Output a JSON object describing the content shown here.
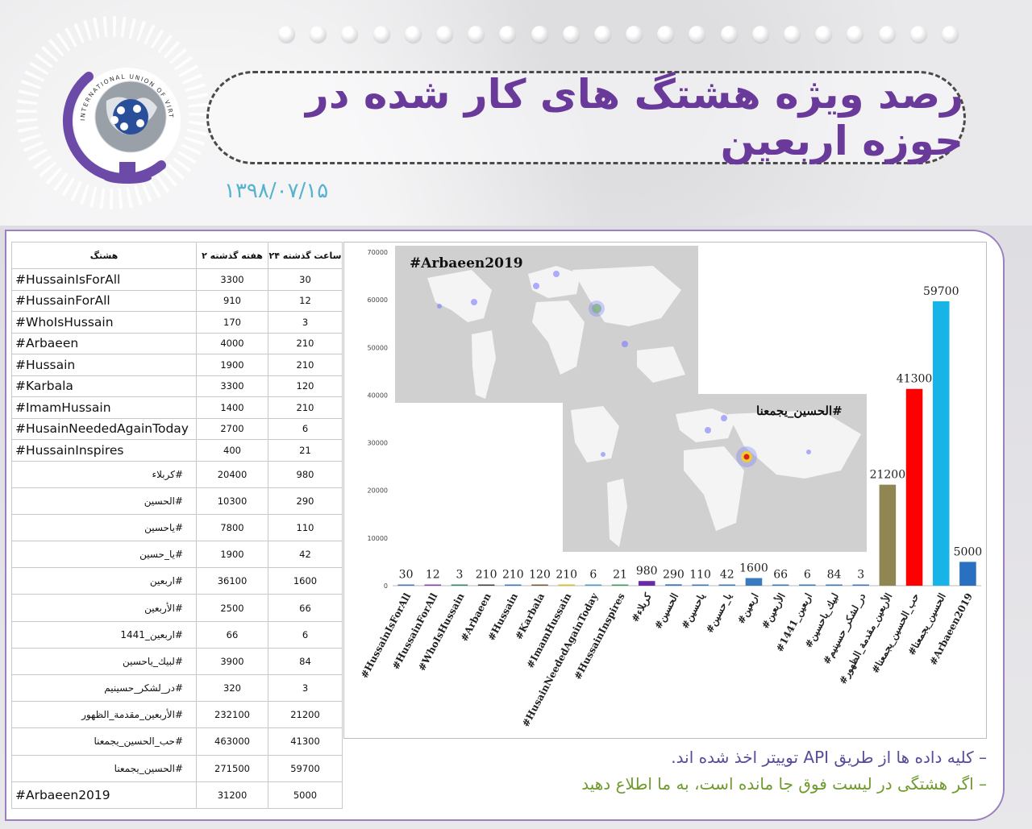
{
  "header": {
    "title": "رصد ویژه هشتگ های کار شده در حوزه اربعین",
    "date": "۱۳۹۸/۰۷/۱۵",
    "logo_text": "INTERNATIONAL UNION OF VIRTUAL MEDIA"
  },
  "table": {
    "headers": {
      "tag": "هشتگ",
      "two_weeks": "۲ هفته گذشته",
      "last_24h": "۲۴ ساعت گذشته"
    },
    "rows": [
      {
        "tag": "#HussainIsForAll",
        "two_weeks": "3300",
        "last_24h": "30"
      },
      {
        "tag": "#HussainForAll",
        "two_weeks": "910",
        "last_24h": "12"
      },
      {
        "tag": "#WhoIsHussain",
        "two_weeks": "170",
        "last_24h": "3"
      },
      {
        "tag": "#Arbaeen",
        "two_weeks": "4000",
        "last_24h": "210"
      },
      {
        "tag": "#Hussain",
        "two_weeks": "1900",
        "last_24h": "210"
      },
      {
        "tag": "#Karbala",
        "two_weeks": "3300",
        "last_24h": "120"
      },
      {
        "tag": "#ImamHussain",
        "two_weeks": "1400",
        "last_24h": "210"
      },
      {
        "tag": "#HusainNeededAgainToday",
        "two_weeks": "2700",
        "last_24h": "6"
      },
      {
        "tag": "#HussainInspires",
        "two_weeks": "400",
        "last_24h": "21"
      },
      {
        "tag": "#کربلاء",
        "two_weeks": "20400",
        "last_24h": "980"
      },
      {
        "tag": "#الحسین",
        "two_weeks": "10300",
        "last_24h": "290"
      },
      {
        "tag": "#یاحسین",
        "two_weeks": "7800",
        "last_24h": "110"
      },
      {
        "tag": "#یا_حسین",
        "two_weeks": "1900",
        "last_24h": "42"
      },
      {
        "tag": "#اربعین",
        "two_weeks": "36100",
        "last_24h": "1600"
      },
      {
        "tag": "#الأربعین",
        "two_weeks": "2500",
        "last_24h": "66"
      },
      {
        "tag": "#اربعین_1441",
        "two_weeks": "66",
        "last_24h": "6"
      },
      {
        "tag": "#لبیك_یاحسین",
        "two_weeks": "3900",
        "last_24h": "84"
      },
      {
        "tag": "#در_لشکر_حسینیم",
        "two_weeks": "320",
        "last_24h": "3"
      },
      {
        "tag": "#الأربعین_مقدمة_الظهور",
        "two_weeks": "232100",
        "last_24h": "21200"
      },
      {
        "tag": "#حب_الحسین_یجمعنا",
        "two_weeks": "463000",
        "last_24h": "41300"
      },
      {
        "tag": "#الحسین_یجمعنا",
        "two_weeks": "271500",
        "last_24h": "59700"
      },
      {
        "tag": "#Arbaeen2019",
        "two_weeks": "31200",
        "last_24h": "5000"
      }
    ]
  },
  "chart_data": {
    "type": "bar",
    "title": "",
    "xlabel": "",
    "ylabel": "",
    "ylim": [
      0,
      70000
    ],
    "yticks": [
      0,
      10000,
      20000,
      30000,
      40000,
      50000,
      60000,
      70000
    ],
    "grid": false,
    "legend": "none",
    "categories": [
      "#HussainIsForAll",
      "#HussainForAll",
      "#WhoIsHussain",
      "#Arbaeen",
      "#Hussain",
      "#Karbala",
      "#ImamHussain",
      "#HusainNeededAgainToday",
      "#HussainInspires",
      "#کربلاء",
      "#الحسین",
      "#یاحسین",
      "#یا_حسین",
      "#اربعین",
      "#الأربعین",
      "#اربعین_1441",
      "#لبیك_یاحسین",
      "#در_لشکر_حسینیم",
      "#الأربعین_مقدمة_الظهور",
      "#حب_الحسین_یجمعنا",
      "#الحسین_یجمعنا",
      "#Arbaeen2019"
    ],
    "values": [
      30,
      12,
      3,
      210,
      210,
      120,
      210,
      6,
      21,
      980,
      290,
      110,
      42,
      1600,
      66,
      6,
      84,
      3,
      21200,
      41300,
      59700,
      5000
    ],
    "colors": [
      "#4a7ab5",
      "#8a3fb0",
      "#2e8a6b",
      "#404040",
      "#3a78c0",
      "#7a5a3a",
      "#d4c020",
      "#4a9ad0",
      "#3aa060",
      "#6a2aa8",
      "#3a7ac0",
      "#3a7ac0",
      "#3a7ac0",
      "#3a7ac0",
      "#3a7ac0",
      "#3a7ac0",
      "#3a7ac0",
      "#3a7ac0",
      "#8f8654",
      "#ff0000",
      "#18b4e8",
      "#2970c0"
    ]
  },
  "maps": {
    "map1_label": "#Arbaeen2019",
    "map2_label": "#الحسین_یجمعنا"
  },
  "notes": {
    "line1": "– کلیه داده ها از طریق API توییتر اخذ شده اند.",
    "line2": "– اگر هشتگی در لیست فوق جا مانده است، به ما اطلاع دهید"
  }
}
